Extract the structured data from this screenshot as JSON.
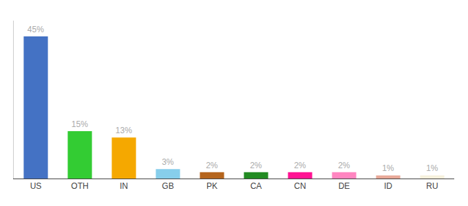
{
  "chart_data": {
    "type": "bar",
    "categories": [
      "US",
      "OTH",
      "IN",
      "GB",
      "PK",
      "CA",
      "CN",
      "DE",
      "ID",
      "RU"
    ],
    "values": [
      45,
      15,
      13,
      3,
      2,
      2,
      2,
      2,
      1,
      1
    ],
    "colors": [
      "#4472c4",
      "#33cc33",
      "#f5a800",
      "#87ceeb",
      "#b5651d",
      "#228b22",
      "#ff1493",
      "#ff85c0",
      "#e8a898",
      "#f5f0dc"
    ],
    "data_labels": true,
    "value_labels": [
      "45%",
      "15%",
      "13%",
      "3%",
      "2%",
      "2%",
      "2%",
      "2%",
      "1%",
      "1%"
    ],
    "ylim": [
      0,
      50
    ],
    "grid": false,
    "tick_labels": "x"
  }
}
